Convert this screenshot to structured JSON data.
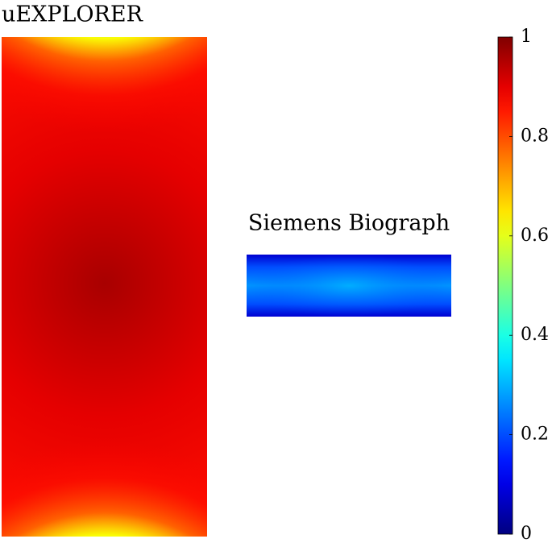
{
  "chart_data": {
    "type": "heatmap",
    "colormap": "jet",
    "panels": [
      {
        "title": "uEXPLORER"
      },
      {
        "title": "Siemens Biograph"
      }
    ],
    "colorbar": {
      "lim": [
        0,
        1
      ],
      "ticks": [
        0,
        0.2,
        0.4,
        0.6,
        0.8,
        1
      ]
    }
  }
}
